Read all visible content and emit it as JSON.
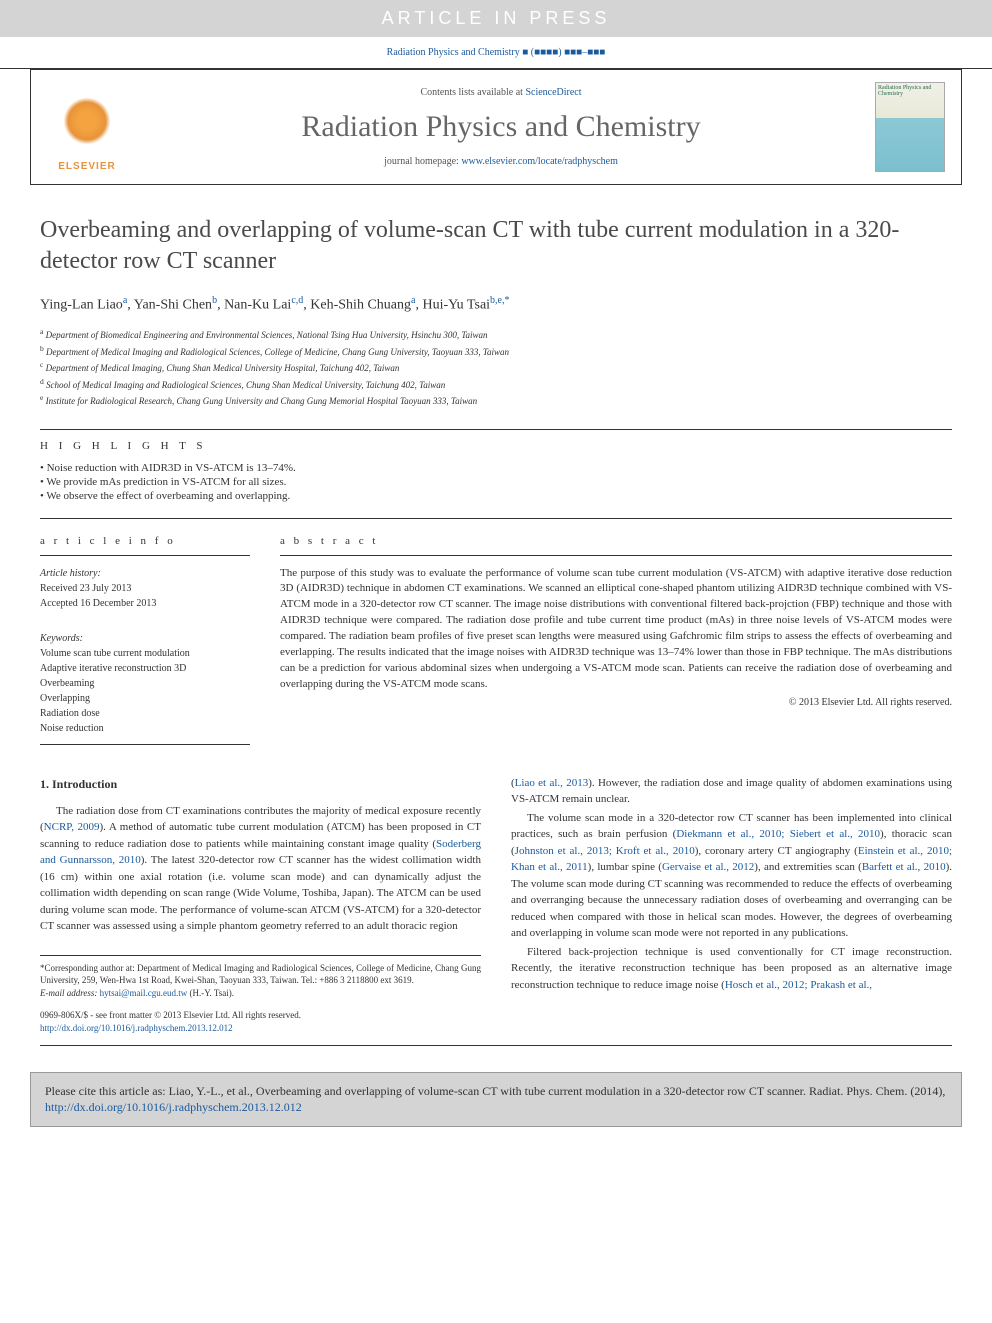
{
  "banner": {
    "article_in_press": "ARTICLE IN PRESS",
    "citation_stub": "Radiation Physics and Chemistry ■ (■■■■) ■■■–■■■"
  },
  "header": {
    "contents_text": "Contents lists available at",
    "contents_link": "ScienceDirect",
    "journal_name": "Radiation Physics and Chemistry",
    "homepage_text": "journal homepage:",
    "homepage_link": "www.elsevier.com/locate/radphyschem",
    "elsevier_label": "ELSEVIER",
    "cover_text": "Radiation Physics and Chemistry"
  },
  "article": {
    "title": "Overbeaming and overlapping of volume-scan CT with tube current modulation in a 320-detector row CT scanner",
    "authors_html": "Ying-Lan Liao<sup>a</sup>, Yan-Shi Chen<sup>b</sup>, Nan-Ku Lai<sup>c,d</sup>, Keh-Shih Chuang<sup>a</sup>, Hui-Yu Tsai<sup>b,e,*</sup>",
    "affiliations": [
      "a Department of Biomedical Engineering and Environmental Sciences, National Tsing Hua University, Hsinchu 300, Taiwan",
      "b Department of Medical Imaging and Radiological Sciences, College of Medicine, Chang Gung University, Taoyuan 333, Taiwan",
      "c Department of Medical Imaging, Chung Shan Medical University Hospital, Taichung 402, Taiwan",
      "d School of Medical Imaging and Radiological Sciences, Chung Shan Medical University, Taichung 402, Taiwan",
      "e Institute for Radiological Research, Chang Gung University and Chang Gung Memorial Hospital Taoyuan 333, Taiwan"
    ]
  },
  "highlights": {
    "header": "H I G H L I G H T S",
    "items": [
      "Noise reduction with AIDR3D in VS-ATCM is 13–74%.",
      "We provide mAs prediction in VS-ATCM for all sizes.",
      "We observe the effect of overbeaming and overlapping."
    ]
  },
  "article_info": {
    "header": "a r t i c l e  i n f o",
    "history_title": "Article history:",
    "received": "Received 23 July 2013",
    "accepted": "Accepted 16 December 2013",
    "keywords_title": "Keywords:",
    "keywords": [
      "Volume scan tube current modulation",
      "Adaptive iterative reconstruction 3D",
      "Overbeaming",
      "Overlapping",
      "Radiation dose",
      "Noise reduction"
    ]
  },
  "abstract": {
    "header": "a b s t r a c t",
    "text": "The purpose of this study was to evaluate the performance of volume scan tube current modulation (VS-ATCM) with adaptive iterative dose reduction 3D (AIDR3D) technique in abdomen CT examinations. We scanned an elliptical cone-shaped phantom utilizing AIDR3D technique combined with VS-ATCM mode in a 320-detector row CT scanner. The image noise distributions with conventional filtered back-projction (FBP) technique and those with AIDR3D technique were compared. The radiation dose profile and tube current time product (mAs) in three noise levels of VS-ATCM modes were compared. The radiation beam profiles of five preset scan lengths were measured using Gafchromic film strips to assess the effects of overbeaming and everlapping. The results indicated that the image noises with AIDR3D technique was 13–74% lower than those in FBP technique. The mAs distributions can be a prediction for various abdominal sizes when undergoing a VS-ATCM mode scan. Patients can receive the radiation dose of overbeaming and overlapping during the VS-ATCM mode scans.",
    "copyright": "© 2013 Elsevier Ltd. All rights reserved."
  },
  "body": {
    "section_number": "1.",
    "section_title": "Introduction",
    "col1_p1_pre": "The radiation dose from CT examinations contributes the majority of medical exposure recently (",
    "col1_p1_ref1": "NCRP, 2009",
    "col1_p1_mid1": "). A method of automatic tube current modulation (ATCM) has been proposed in CT scanning to reduce radiation dose to patients while maintaining constant image quality (",
    "col1_p1_ref2": "Soderberg and Gunnarsson, 2010",
    "col1_p1_post": "). The latest 320-detector row CT scanner has the widest collimation width (16 cm) within one axial rotation (i.e. volume scan mode) and can dynamically adjust the collimation width depending on scan range (Wide Volume, Toshiba, Japan). The ATCM can be used during volume scan mode. The performance of volume-scan ATCM (VS-ATCM) for a 320-detector CT scanner was assessed using a simple phantom geometry referred to an adult thoracic region",
    "col2_p1_pre": "(",
    "col2_p1_ref1": "Liao et al., 2013",
    "col2_p1_post": "). However, the radiation dose and image quality of abdomen examinations using VS-ATCM remain unclear.",
    "col2_p2_pre": "The volume scan mode in a 320-detector row CT scanner has been implemented into clinical practices, such as brain perfusion (",
    "col2_p2_ref1": "Diekmann et al., 2010; Siebert et al., 2010",
    "col2_p2_mid1": "), thoracic scan (",
    "col2_p2_ref2": "Johnston et al., 2013; Kroft et al., 2010",
    "col2_p2_mid2": "), coronary artery CT angiography (",
    "col2_p2_ref3": "Einstein et al., 2010; Khan et al., 2011",
    "col2_p2_mid3": "), lumbar spine (",
    "col2_p2_ref4": "Gervaise et al., 2012",
    "col2_p2_mid4": "), and extremities scan (",
    "col2_p2_ref5": "Barfett et al., 2010",
    "col2_p2_post": "). The volume scan mode during CT scanning was recommended to reduce the effects of overbeaming and overranging because the unnecessary radiation doses of overbeaming and overranging can be reduced when compared with those in helical scan modes. However, the degrees of overbeaming and overlapping in volume scan mode were not reported in any publications.",
    "col2_p3_pre": "Filtered back-projection technique is used conventionally for CT image reconstruction. Recently, the iterative reconstruction technique has been proposed as an alternative image reconstruction technique to reduce image noise (",
    "col2_p3_ref1": "Hosch et al., 2012; Prakash et al.,"
  },
  "footnote": {
    "corresponding": "*Corresponding author at: Department of Medical Imaging and Radiological Sciences, College of Medicine, Chang Gung University, 259, Wen-Hwa 1st Road, Kwei-Shan, Taoyuan 333, Taiwan. Tel.: +886 3 2118800 ext 3619.",
    "email_label": "E-mail address:",
    "email": "hytsai@mail.cgu.eud.tw",
    "email_author": "(H.-Y. Tsai).",
    "copyright_line": "0969-806X/$ - see front matter © 2013 Elsevier Ltd. All rights reserved.",
    "doi": "http://dx.doi.org/10.1016/j.radphyschem.2013.12.012"
  },
  "cite_box": {
    "text_pre": "Please cite this article as: Liao, Y.-L., et al., Overbeaming and overlapping of volume-scan CT with tube current modulation in a 320-detector row CT scanner. Radiat. Phys. Chem. (2014), ",
    "link": "http://dx.doi.org/10.1016/j.radphyschem.2013.12.012"
  },
  "colors": {
    "link": "#1a5a9e",
    "banner_bg": "#d4d4d4",
    "text": "#333333",
    "elsevier_orange": "#e8933a"
  }
}
